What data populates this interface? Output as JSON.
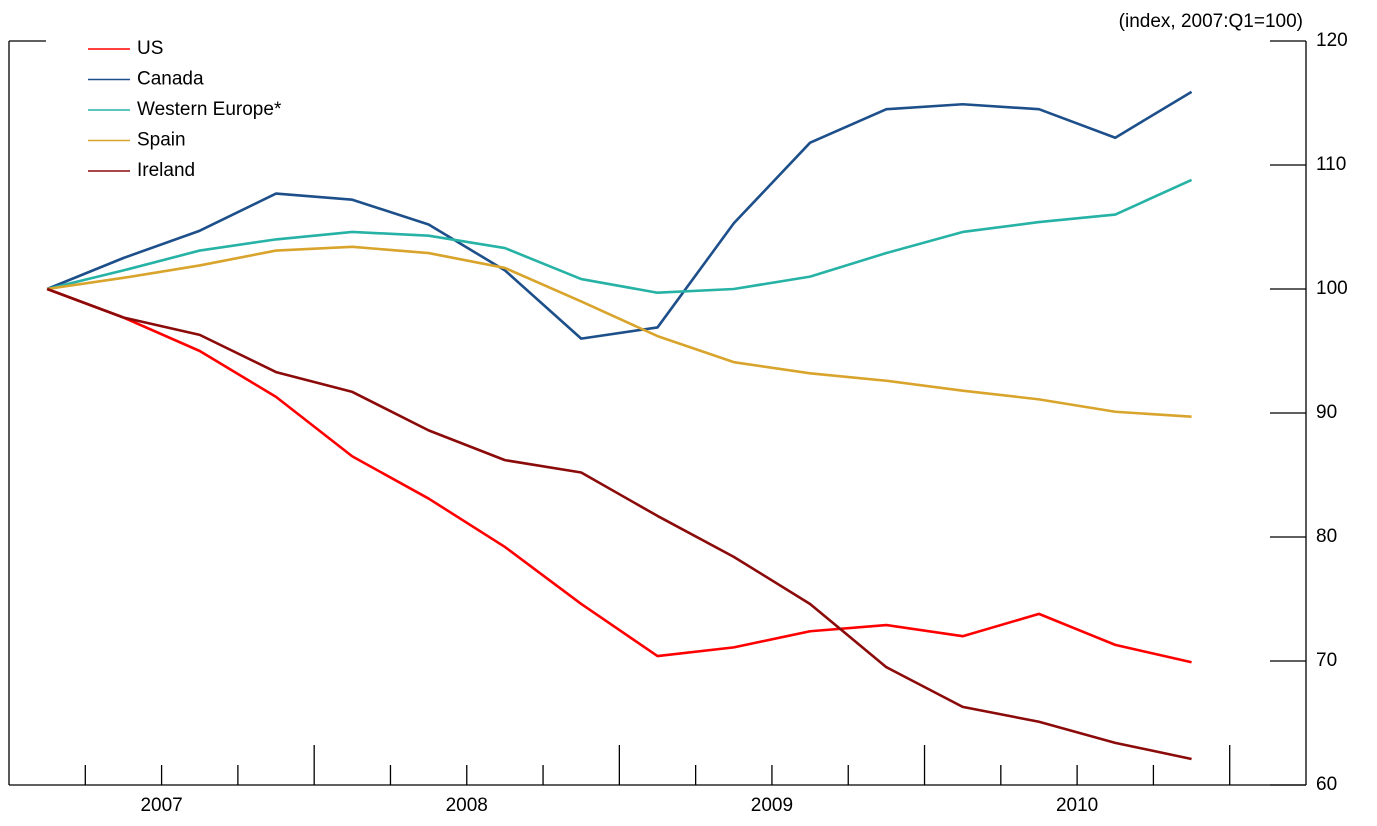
{
  "chart_data": {
    "type": "line",
    "units_label": "(index, 2007:Q1=100)",
    "x": [
      2007.125,
      2007.375,
      2007.625,
      2007.875,
      2008.125,
      2008.375,
      2008.625,
      2008.875,
      2009.125,
      2009.375,
      2009.625,
      2009.875,
      2010.125,
      2010.375,
      2010.625,
      2010.875
    ],
    "xlim": [
      2007,
      2011.25
    ],
    "xticks": [
      {
        "value": 2007.5,
        "label": "2007"
      },
      {
        "value": 2008.5,
        "label": "2008"
      },
      {
        "value": 2009.5,
        "label": "2009"
      },
      {
        "value": 2010.5,
        "label": "2010"
      }
    ],
    "x_major_tick_marks": [
      2008,
      2009,
      2010,
      2011
    ],
    "x_minor_tick_marks": [
      2007.25,
      2007.5,
      2007.75,
      2008.25,
      2008.5,
      2008.75,
      2009.25,
      2009.5,
      2009.75,
      2010.25,
      2010.5,
      2010.75
    ],
    "ylim": [
      60,
      120
    ],
    "yticks": [
      60,
      70,
      80,
      90,
      100,
      110,
      120
    ],
    "series": [
      {
        "name": "US",
        "color": "#ff0000",
        "values": [
          100,
          97.7,
          95.0,
          91.3,
          86.5,
          83.1,
          79.2,
          74.6,
          70.4,
          71.1,
          72.4,
          72.9,
          72.0,
          73.8,
          71.3,
          69.9
        ]
      },
      {
        "name": "Canada",
        "color": "#1d4f8a",
        "values": [
          100,
          102.5,
          104.7,
          107.7,
          107.2,
          105.2,
          101.5,
          96.0,
          96.9,
          105.3,
          111.8,
          114.5,
          114.9,
          114.5,
          112.2,
          115.9
        ]
      },
      {
        "name": "Western Europe*",
        "color": "#27b2a6",
        "values": [
          100,
          101.5,
          103.1,
          104.0,
          104.6,
          104.3,
          103.3,
          100.8,
          99.7,
          100.0,
          101.0,
          102.9,
          104.6,
          105.4,
          106.0,
          108.8
        ]
      },
      {
        "name": "Spain",
        "color": "#d9a42c",
        "values": [
          100,
          100.9,
          101.9,
          103.1,
          103.4,
          102.9,
          101.7,
          99.0,
          96.2,
          94.1,
          93.2,
          92.6,
          91.8,
          91.1,
          90.1,
          89.7
        ]
      },
      {
        "name": "Ireland",
        "color": "#8b0a0a",
        "values": [
          100,
          97.7,
          96.3,
          93.3,
          91.7,
          88.6,
          86.2,
          85.2,
          81.7,
          78.4,
          74.6,
          69.5,
          66.3,
          65.1,
          63.4,
          62.1
        ]
      }
    ]
  }
}
